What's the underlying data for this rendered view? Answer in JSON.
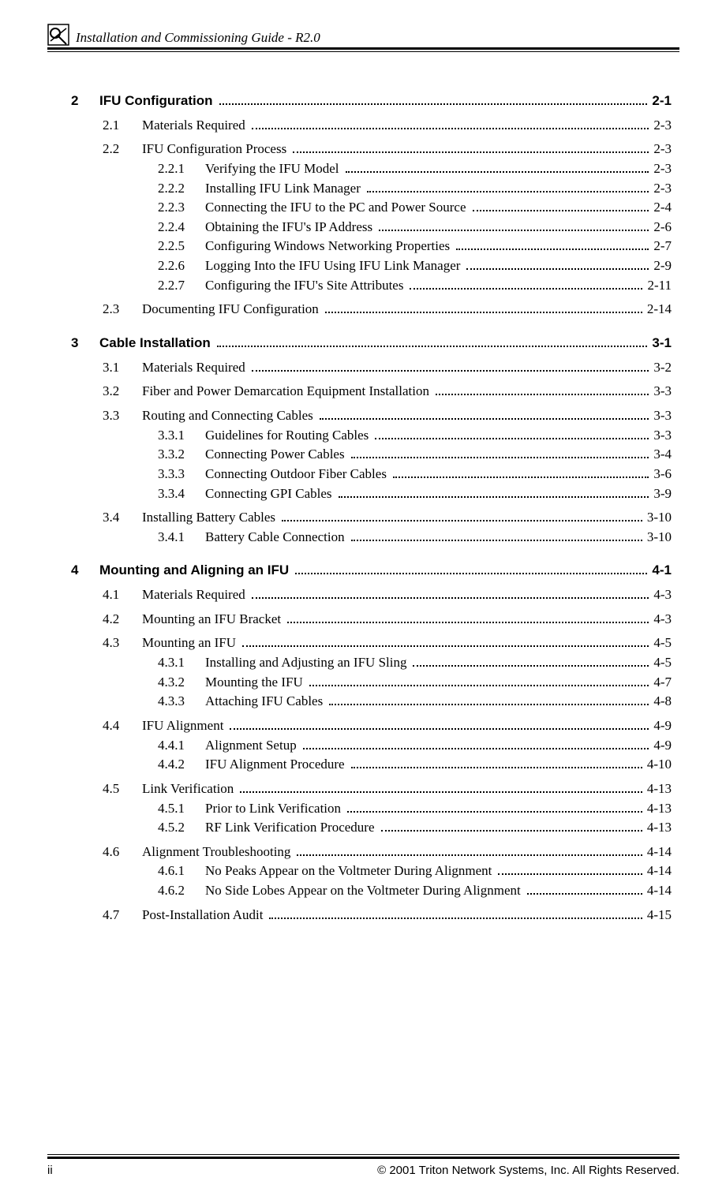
{
  "header": {
    "title": "Installation and Commissioning Guide - R2.0"
  },
  "footer": {
    "page_num": "ii",
    "copyright": "© 2001 Triton Network Systems, Inc. All Rights Reserved."
  },
  "chapters": [
    {
      "num": "2",
      "title": "IFU Configuration",
      "page": "2-1",
      "sections": [
        {
          "num": "2.1",
          "title": "Materials Required",
          "page": "2-3",
          "subs": []
        },
        {
          "num": "2.2",
          "title": "IFU Configuration Process",
          "page": "2-3",
          "subs": [
            {
              "num": "2.2.1",
              "title": "Verifying the IFU Model",
              "page": "2-3"
            },
            {
              "num": "2.2.2",
              "title": "Installing IFU Link Manager",
              "page": "2-3"
            },
            {
              "num": "2.2.3",
              "title": "Connecting the IFU to the PC and Power Source",
              "page": "2-4"
            },
            {
              "num": "2.2.4",
              "title": "Obtaining the IFU's IP Address",
              "page": "2-6"
            },
            {
              "num": "2.2.5",
              "title": "Configuring Windows Networking Properties",
              "page": "2-7"
            },
            {
              "num": "2.2.6",
              "title": "Logging Into the IFU Using IFU Link Manager",
              "page": "2-9"
            },
            {
              "num": "2.2.7",
              "title": "Configuring the IFU's Site Attributes",
              "page": "2-11"
            }
          ]
        },
        {
          "num": "2.3",
          "title": "Documenting IFU Configuration",
          "page": "2-14",
          "subs": []
        }
      ]
    },
    {
      "num": "3",
      "title": "Cable Installation",
      "page": "3-1",
      "sections": [
        {
          "num": "3.1",
          "title": "Materials Required",
          "page": "3-2",
          "subs": []
        },
        {
          "num": "3.2",
          "title": "Fiber and Power Demarcation Equipment Installation",
          "page": "3-3",
          "subs": []
        },
        {
          "num": "3.3",
          "title": "Routing and Connecting Cables",
          "page": "3-3",
          "subs": [
            {
              "num": "3.3.1",
              "title": "Guidelines for Routing Cables",
              "page": "3-3"
            },
            {
              "num": "3.3.2",
              "title": "Connecting Power Cables",
              "page": "3-4"
            },
            {
              "num": "3.3.3",
              "title": "Connecting Outdoor Fiber Cables",
              "page": "3-6"
            },
            {
              "num": "3.3.4",
              "title": "Connecting GPI Cables",
              "page": "3-9"
            }
          ]
        },
        {
          "num": "3.4",
          "title": "Installing Battery Cables",
          "page": "3-10",
          "subs": [
            {
              "num": "3.4.1",
              "title": "Battery Cable Connection",
              "page": "3-10"
            }
          ]
        }
      ]
    },
    {
      "num": "4",
      "title": "Mounting and Aligning an IFU",
      "page": "4-1",
      "sections": [
        {
          "num": "4.1",
          "title": "Materials Required",
          "page": "4-3",
          "subs": []
        },
        {
          "num": "4.2",
          "title": "Mounting an IFU Bracket",
          "page": "4-3",
          "subs": []
        },
        {
          "num": "4.3",
          "title": "Mounting an IFU",
          "page": "4-5",
          "subs": [
            {
              "num": "4.3.1",
              "title": "Installing and Adjusting an IFU Sling",
              "page": "4-5"
            },
            {
              "num": "4.3.2",
              "title": "Mounting the IFU",
              "page": "4-7"
            },
            {
              "num": "4.3.3",
              "title": "Attaching IFU Cables",
              "page": "4-8"
            }
          ]
        },
        {
          "num": "4.4",
          "title": "IFU Alignment",
          "page": "4-9",
          "subs": [
            {
              "num": "4.4.1",
              "title": "Alignment Setup",
              "page": "4-9"
            },
            {
              "num": "4.4.2",
              "title": "IFU Alignment Procedure",
              "page": "4-10"
            }
          ]
        },
        {
          "num": "4.5",
          "title": "Link Verification",
          "page": "4-13",
          "subs": [
            {
              "num": "4.5.1",
              "title": "Prior to Link Verification",
              "page": "4-13"
            },
            {
              "num": "4.5.2",
              "title": "RF Link Verification Procedure",
              "page": "4-13"
            }
          ]
        },
        {
          "num": "4.6",
          "title": "Alignment Troubleshooting",
          "page": "4-14",
          "subs": [
            {
              "num": "4.6.1",
              "title": "No Peaks Appear on the Voltmeter During Alignment",
              "page": "4-14"
            },
            {
              "num": "4.6.2",
              "title": "No Side Lobes Appear on the Voltmeter During Alignment",
              "page": "4-14"
            }
          ]
        },
        {
          "num": "4.7",
          "title": "Post-Installation Audit",
          "page": "4-15",
          "subs": []
        }
      ]
    }
  ]
}
